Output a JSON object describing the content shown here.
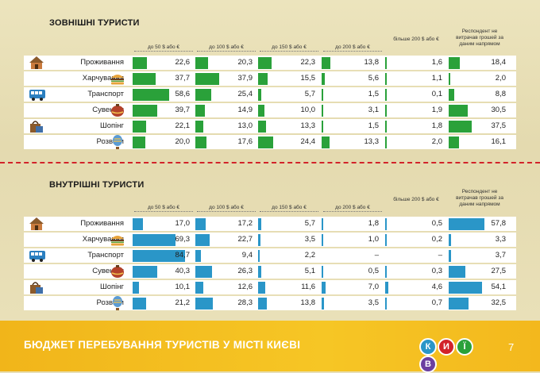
{
  "foreign": {
    "title": "ЗОВНІШНІ ТУРИСТИ",
    "headers": [
      "до 50 $ або €",
      "до 100 $ або €",
      "до 150 $ або €",
      "до 200 $ або €",
      "більше 200 $ або €",
      "Респондент не витрачав грошей за даним напрямом"
    ],
    "rows": [
      {
        "label": "Проживання",
        "icon": "house-icon",
        "values": [
          "22,6",
          "20,3",
          "22,3",
          "13,8",
          "1,6",
          "18,4"
        ],
        "num": [
          22.6,
          20.3,
          22.3,
          13.8,
          1.6,
          18.4
        ]
      },
      {
        "label": "Харчування",
        "icon": "burger-icon",
        "values": [
          "37,7",
          "37,9",
          "15,5",
          "5,6",
          "1,1",
          "2,0"
        ],
        "num": [
          37.7,
          37.9,
          15.5,
          5.6,
          1.1,
          2.0
        ]
      },
      {
        "label": "Транспорт",
        "icon": "bus-icon",
        "values": [
          "58,6",
          "25,4",
          "5,7",
          "1,5",
          "0,1",
          "8,8"
        ],
        "num": [
          58.6,
          25.4,
          5.7,
          1.5,
          0.1,
          8.8
        ]
      },
      {
        "label": "Сувеніри",
        "icon": "souvenir-icon",
        "values": [
          "39,7",
          "14,9",
          "10,0",
          "3,1",
          "1,9",
          "30,5"
        ],
        "num": [
          39.7,
          14.9,
          10.0,
          3.1,
          1.9,
          30.5
        ]
      },
      {
        "label": "Шопінг",
        "icon": "shopping-icon",
        "values": [
          "22,1",
          "13,0",
          "13,3",
          "1,5",
          "1,8",
          "37,5"
        ],
        "num": [
          22.1,
          13.0,
          13.3,
          1.5,
          1.8,
          37.5
        ]
      },
      {
        "label": "Розваги",
        "icon": "balloon-icon",
        "values": [
          "20,0",
          "17,6",
          "24,4",
          "13,3",
          "2,0",
          "16,1"
        ],
        "num": [
          20.0,
          17.6,
          24.4,
          13.3,
          2.0,
          16.1
        ]
      }
    ]
  },
  "domestic": {
    "title": "ВНУТРІШНІ  ТУРИСТИ",
    "headers": [
      "до 50 $ або €",
      "до 100 $ або €",
      "до 150 $ або €",
      "до 200 $ або €",
      "більше 200 $ або €",
      "Респондент не витрачав грошей за даним напрямом"
    ],
    "rows": [
      {
        "label": "Проживання",
        "icon": "house-icon",
        "values": [
          "17,0",
          "17,2",
          "5,7",
          "1,8",
          "0,5",
          "57,8"
        ],
        "num": [
          17.0,
          17.2,
          5.7,
          1.8,
          0.5,
          57.8
        ]
      },
      {
        "label": "Харчування",
        "icon": "burger-icon",
        "values": [
          "69,3",
          "22,7",
          "3,5",
          "1,0",
          "0,2",
          "3,3"
        ],
        "num": [
          69.3,
          22.7,
          3.5,
          1.0,
          0.2,
          3.3
        ]
      },
      {
        "label": "Транспорт",
        "icon": "bus-icon",
        "values": [
          "84,7",
          "9,4",
          "2,2",
          "–",
          "–",
          "3,7"
        ],
        "num": [
          84.7,
          9.4,
          2.2,
          0,
          0,
          3.7
        ]
      },
      {
        "label": "Сувеніри",
        "icon": "souvenir-icon",
        "values": [
          "40,3",
          "26,3",
          "5,1",
          "0,5",
          "0,3",
          "27,5"
        ],
        "num": [
          40.3,
          26.3,
          5.1,
          0.5,
          0.3,
          27.5
        ]
      },
      {
        "label": "Шопінг",
        "icon": "shopping-icon",
        "values": [
          "10,1",
          "12,6",
          "11,6",
          "7,0",
          "4,6",
          "54,1"
        ],
        "num": [
          10.1,
          12.6,
          11.6,
          7.0,
          4.6,
          54.1
        ]
      },
      {
        "label": "Розваги",
        "icon": "balloon-icon",
        "values": [
          "21,2",
          "28,3",
          "13,8",
          "3,5",
          "0,7",
          "32,5"
        ],
        "num": [
          21.2,
          28.3,
          13.8,
          3.5,
          0.7,
          32.5
        ]
      }
    ]
  },
  "colors": {
    "foreign_bar": "#2aa13a",
    "domestic_bar": "#2a96c8",
    "divider": "#d2232a",
    "footer": "#f4bd20"
  },
  "footer": {
    "title": "БЮДЖЕТ ПЕРЕБУВАННЯ ТУРИСТІВ У МІСТІ КИЄВІ",
    "page": "7",
    "logo_letters": [
      "К",
      "И",
      "Ї",
      "В"
    ]
  }
}
